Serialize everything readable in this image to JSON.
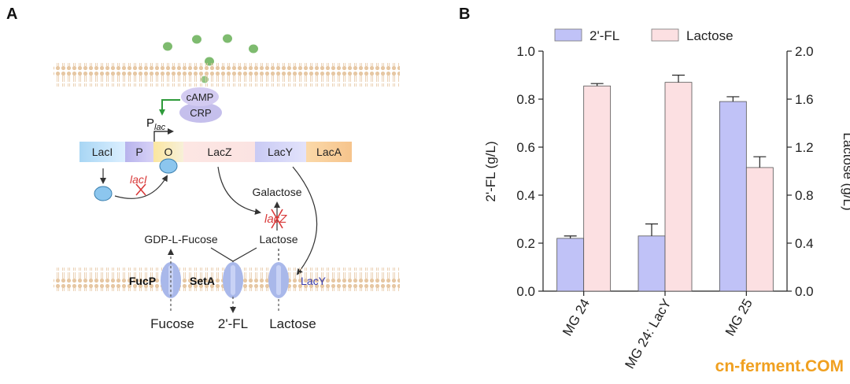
{
  "panel_a": {
    "label": "A",
    "camp": "cAMP",
    "crp": "CRP",
    "promoter_main": "P",
    "promoter_sub": "lac",
    "operon": [
      "LacI",
      "P",
      "O",
      "LacZ",
      "LacY",
      "LacA"
    ],
    "deleted_laci": "lacI",
    "deleted_lacz": "lacZ",
    "galactose": "Galactose",
    "gdp_fucose": "GDP-L-Fucose",
    "lactose_inner": "Lactose",
    "transporters": {
      "fucp": "FucP",
      "seta": "SetA",
      "lacy": "LacY"
    },
    "bottom": {
      "fucose": "Fucose",
      "fl": "2'-FL",
      "lactose": "Lactose"
    },
    "colors": {
      "membrane": "#f1dcc3",
      "transporter": "#a9b8ea",
      "molecule": "#7ebb6f",
      "deletion": "#d93a3a",
      "lacy_text": "#3b3fb0"
    }
  },
  "panel_b": {
    "label": "B",
    "legend": [
      "2'-FL",
      "Lactose"
    ],
    "left_axis_label": "2'-FL (g/L)",
    "right_axis_label": "Lactose (g/L)",
    "left_ticks": [
      "0.0",
      "0.2",
      "0.4",
      "0.6",
      "0.8",
      "1.0"
    ],
    "right_ticks": [
      "0.0",
      "0.4",
      "0.8",
      "1.2",
      "1.6",
      "2.0"
    ]
  },
  "chart_data": {
    "type": "bar",
    "categories": [
      "MG 24",
      "MG 24: LacY",
      "MG 25"
    ],
    "series": [
      {
        "name": "2'-FL",
        "axis": "left",
        "values": [
          0.22,
          0.23,
          0.79
        ],
        "errors": [
          0.01,
          0.05,
          0.02
        ],
        "color": "#c0c2f7"
      },
      {
        "name": "Lactose",
        "axis": "right",
        "values": [
          1.71,
          1.74,
          1.03
        ],
        "errors": [
          0.02,
          0.06,
          0.09
        ],
        "color": "#fce0e2"
      }
    ],
    "ylim_left": [
      0,
      1.0
    ],
    "ylim_right": [
      0,
      2.0
    ],
    "legend_position": "top"
  },
  "watermark": "cn-ferment.COM"
}
